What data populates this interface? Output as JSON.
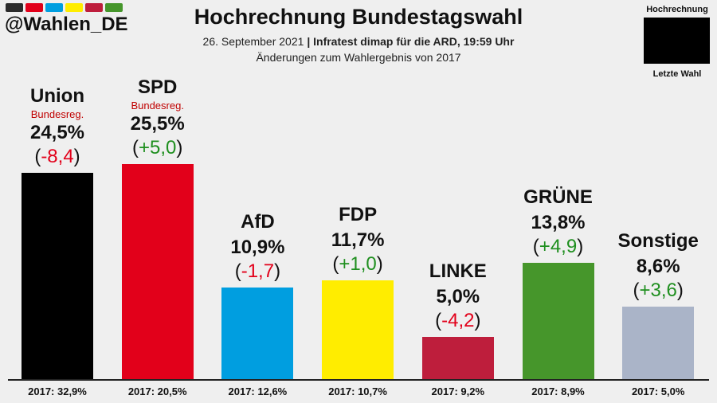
{
  "header": {
    "handle": "@Wahlen_DE",
    "brand_colors": [
      "#2b2b2b",
      "#e2001a",
      "#009ee0",
      "#ffed00",
      "#be1e3c",
      "#46962b"
    ],
    "title": "Hochrechnung Bundestagswahl",
    "date": "26. September 2021",
    "separator": "|",
    "source": "Infratest dimap für die ARD, 19:59 Uhr",
    "subtitle": "Änderungen zum Wahlergebnis von 2017"
  },
  "inset": {
    "top_label": "Hochrechnung",
    "bottom_label": "Letzte Wahl",
    "color": "#000000"
  },
  "colors": {
    "positive": "#1f8f1f",
    "negative": "#e2001a",
    "sub_label": "#c00000"
  },
  "chart_data": {
    "type": "bar",
    "title": "Hochrechnung Bundestagswahl",
    "xlabel": "",
    "ylabel": "",
    "ylim": [
      0,
      30
    ],
    "grid": false,
    "categories": [
      "Union",
      "SPD",
      "AfD",
      "FDP",
      "LINKE",
      "GRÜNE",
      "Sonstige"
    ],
    "values": [
      24.5,
      25.5,
      10.9,
      11.7,
      5.0,
      13.8,
      8.6
    ],
    "changes": [
      -8.4,
      5.0,
      -1.7,
      1.0,
      -4.2,
      4.9,
      3.6
    ],
    "previous": [
      32.9,
      20.5,
      12.6,
      10.7,
      9.2,
      8.9,
      5.0
    ],
    "bars": [
      {
        "party": "Union",
        "sub": "Bundesreg.",
        "value_label": "24,5%",
        "change_label": "-8,4",
        "prev_label": "2017: 32,9%",
        "color": "#000000"
      },
      {
        "party": "SPD",
        "sub": "Bundesreg.",
        "value_label": "25,5%",
        "change_label": "+5,0",
        "prev_label": "2017: 20,5%",
        "color": "#e2001a"
      },
      {
        "party": "AfD",
        "sub": "",
        "value_label": "10,9%",
        "change_label": "-1,7",
        "prev_label": "2017: 12,6%",
        "color": "#009ee0"
      },
      {
        "party": "FDP",
        "sub": "",
        "value_label": "11,7%",
        "change_label": "+1,0",
        "prev_label": "2017: 10,7%",
        "color": "#ffed00"
      },
      {
        "party": "LINKE",
        "sub": "",
        "value_label": "5,0%",
        "change_label": "-4,2",
        "prev_label": "2017: 9,2%",
        "color": "#be1e3c"
      },
      {
        "party": "GRÜNE",
        "sub": "",
        "value_label": "13,8%",
        "change_label": "+4,9",
        "prev_label": "2017: 8,9%",
        "color": "#46962b"
      },
      {
        "party": "Sonstige",
        "sub": "",
        "value_label": "8,6%",
        "change_label": "+3,6",
        "prev_label": "2017: 5,0%",
        "color": "#aab4c8"
      }
    ]
  }
}
